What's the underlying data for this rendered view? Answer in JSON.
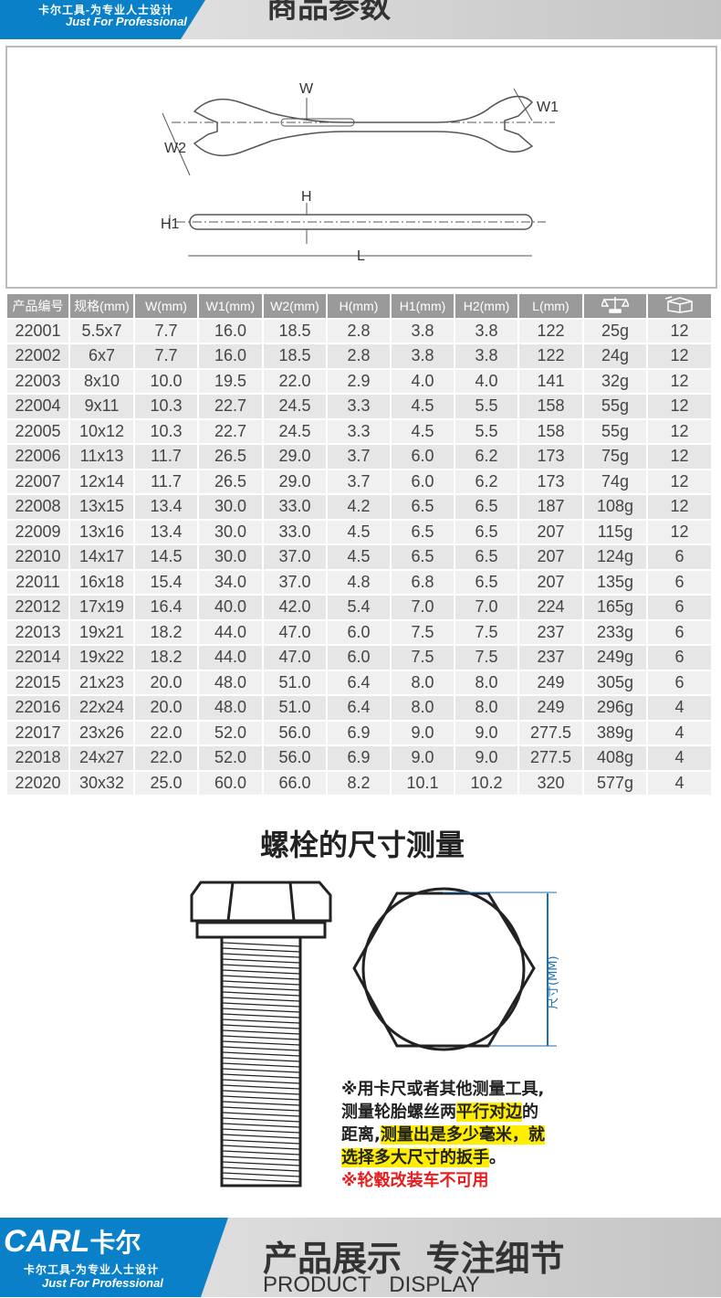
{
  "header": {
    "slogan": "卡尔工具-为专业人士设计",
    "tagline": "Just For Professional",
    "title": "商品参数"
  },
  "diagram": {
    "labels": {
      "w": "W",
      "w1": "W1",
      "w2": "W2",
      "h": "H",
      "h1": "H1",
      "l": "L"
    }
  },
  "table": {
    "headers": [
      "产品编号",
      "规格(mm)",
      "W(mm)",
      "W1(mm)",
      "W2(mm)",
      "H(mm)",
      "H1(mm)",
      "H2(mm)",
      "L(mm)",
      "weight-icon",
      "box-icon"
    ],
    "rows": [
      [
        "22001",
        "5.5x7",
        "7.7",
        "16.0",
        "18.5",
        "2.8",
        "3.8",
        "3.8",
        "122",
        "25g",
        "12"
      ],
      [
        "22002",
        "6x7",
        "7.7",
        "16.0",
        "18.5",
        "2.8",
        "3.8",
        "3.8",
        "122",
        "24g",
        "12"
      ],
      [
        "22003",
        "8x10",
        "10.0",
        "19.5",
        "22.0",
        "2.9",
        "4.0",
        "4.0",
        "141",
        "32g",
        "12"
      ],
      [
        "22004",
        "9x11",
        "10.3",
        "22.7",
        "24.5",
        "3.3",
        "4.5",
        "5.5",
        "158",
        "55g",
        "12"
      ],
      [
        "22005",
        "10x12",
        "10.3",
        "22.7",
        "24.5",
        "3.3",
        "4.5",
        "5.5",
        "158",
        "55g",
        "12"
      ],
      [
        "22006",
        "11x13",
        "11.7",
        "26.5",
        "29.0",
        "3.7",
        "6.0",
        "6.2",
        "173",
        "75g",
        "12"
      ],
      [
        "22007",
        "12x14",
        "11.7",
        "26.5",
        "29.0",
        "3.7",
        "6.0",
        "6.2",
        "173",
        "74g",
        "12"
      ],
      [
        "22008",
        "13x15",
        "13.4",
        "30.0",
        "33.0",
        "4.2",
        "6.5",
        "6.5",
        "187",
        "108g",
        "12"
      ],
      [
        "22009",
        "13x16",
        "13.4",
        "30.0",
        "33.0",
        "4.5",
        "6.5",
        "6.5",
        "207",
        "115g",
        "12"
      ],
      [
        "22010",
        "14x17",
        "14.5",
        "30.0",
        "37.0",
        "4.5",
        "6.5",
        "6.5",
        "207",
        "124g",
        "6"
      ],
      [
        "22011",
        "16x18",
        "15.4",
        "34.0",
        "37.0",
        "4.8",
        "6.8",
        "6.5",
        "207",
        "135g",
        "6"
      ],
      [
        "22012",
        "17x19",
        "16.4",
        "40.0",
        "42.0",
        "5.4",
        "7.0",
        "7.0",
        "224",
        "165g",
        "6"
      ],
      [
        "22013",
        "19x21",
        "18.2",
        "44.0",
        "47.0",
        "6.0",
        "7.5",
        "7.5",
        "237",
        "233g",
        "6"
      ],
      [
        "22014",
        "19x22",
        "18.2",
        "44.0",
        "47.0",
        "6.0",
        "7.5",
        "7.5",
        "237",
        "249g",
        "6"
      ],
      [
        "22015",
        "21x23",
        "20.0",
        "48.0",
        "51.0",
        "6.4",
        "8.0",
        "8.0",
        "249",
        "305g",
        "6"
      ],
      [
        "22016",
        "22x24",
        "20.0",
        "48.0",
        "51.0",
        "6.4",
        "8.0",
        "8.0",
        "249",
        "296g",
        "4"
      ],
      [
        "22017",
        "23x26",
        "22.0",
        "52.0",
        "56.0",
        "6.9",
        "9.0",
        "9.0",
        "277.5",
        "389g",
        "4"
      ],
      [
        "22018",
        "24x27",
        "22.0",
        "52.0",
        "56.0",
        "6.9",
        "9.0",
        "9.0",
        "277.5",
        "408g",
        "4"
      ],
      [
        "22020",
        "30x32",
        "25.0",
        "60.0",
        "66.0",
        "8.2",
        "10.1",
        "10.2",
        "320",
        "577g",
        "4"
      ]
    ]
  },
  "bolt": {
    "title": "螺栓的尺寸测量",
    "dim_label": "尺寸(MM)",
    "note": {
      "l1": "※用卡尺或者其他测量工具,",
      "l2a": "测量轮胎螺丝两",
      "l2b": "平行对边",
      "l2c": "的",
      "l3a": "距离,",
      "l3b": "测量出是多少毫米，就",
      "l4a": "选择多大尺寸的扳手",
      "l4b": "。",
      "l5": "※轮毂改装车不可用"
    }
  },
  "footer": {
    "brand": "CARL",
    "brand_cn": "卡尔",
    "slogan": "卡尔工具-为专业人士设计",
    "tagline": "Just For Professional",
    "title_cn": "产品展示  专注细节",
    "title_en": "PRODUCT   DISPLAY"
  },
  "colors": {
    "brand_blue": "#0a80c8",
    "highlight": "#ffee00",
    "warning": "#e81c1c"
  }
}
